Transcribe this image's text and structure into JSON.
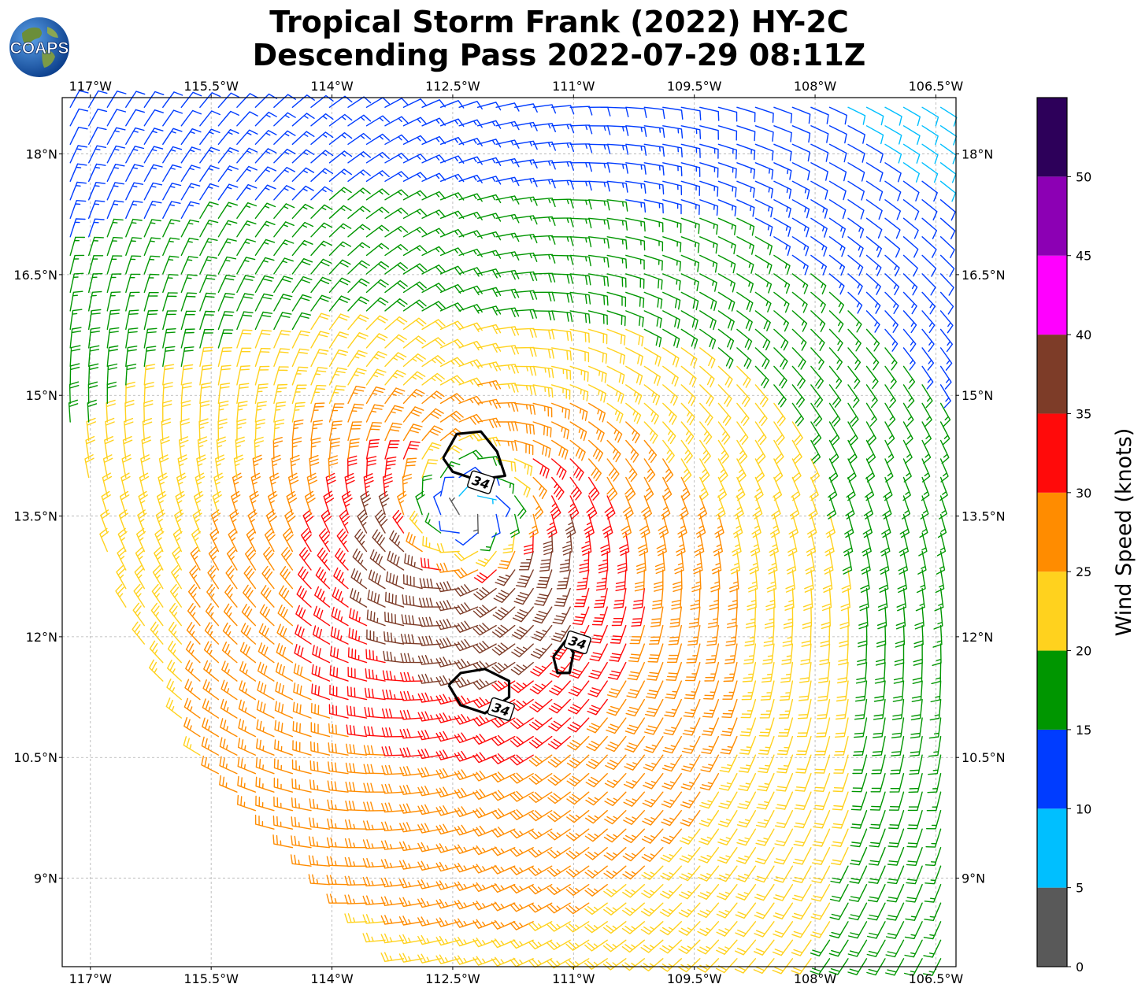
{
  "title_line1": "Tropical Storm Frank (2022) HY-2C",
  "title_line2": "Descending Pass 2022-07-29 08:11Z",
  "logo_text": "COAPS",
  "chart_data": {
    "type": "wind_barb",
    "title": "Tropical Storm Frank (2022) HY-2C Descending Pass 2022-07-29 08:11Z",
    "xlim": [
      -117.35,
      -106.25
    ],
    "ylim": [
      7.9,
      18.7
    ],
    "x_ticks": [
      -117,
      -115.5,
      -114,
      -112.5,
      -111,
      -109.5,
      -108,
      -106.5
    ],
    "x_tick_labels": [
      "117°W",
      "115.5°W",
      "114°W",
      "112.5°W",
      "111°W",
      "109.5°W",
      "108°W",
      "106.5°W"
    ],
    "y_ticks": [
      9,
      10.5,
      12,
      13.5,
      15,
      16.5,
      18
    ],
    "y_tick_labels": [
      "9°N",
      "10.5°N",
      "12°N",
      "13.5°N",
      "15°N",
      "16.5°N",
      "18°N"
    ],
    "grid": true,
    "storm_center": {
      "lon": -112.3,
      "lat": 13.55
    },
    "swath_edge": [
      [
        -117.35,
        18.7
      ],
      [
        -117.35,
        14.7
      ],
      [
        -116.9,
        13.2
      ],
      [
        -116.7,
        12.4
      ],
      [
        -115.8,
        10.6
      ],
      [
        -115.1,
        9.9
      ],
      [
        -113.2,
        7.9
      ]
    ],
    "colorbar": {
      "label": "Wind Speed (knots)",
      "bounds": [
        0,
        5,
        10,
        15,
        20,
        25,
        30,
        35,
        40,
        45,
        50,
        55
      ],
      "tick_labels": [
        "0",
        "5",
        "10",
        "15",
        "20",
        "25",
        "30",
        "35",
        "40",
        "45",
        "50"
      ],
      "colors": [
        "#595959",
        "#00bfff",
        "#003cff",
        "#009600",
        "#ffd21e",
        "#ff8c00",
        "#ff0a0a",
        "#7d3c28",
        "#ff00ff",
        "#8c00b4",
        "#2d005a"
      ]
    },
    "contours": [
      {
        "level": 34,
        "label": "34",
        "points": [
          [
            -112.62,
            14.22
          ],
          [
            -112.45,
            14.52
          ],
          [
            -112.15,
            14.55
          ],
          [
            -111.95,
            14.3
          ],
          [
            -111.85,
            14.0
          ],
          [
            -112.2,
            13.95
          ],
          [
            -112.5,
            14.05
          ],
          [
            -112.62,
            14.22
          ]
        ]
      },
      {
        "level": 34,
        "label": "34",
        "points": [
          [
            -112.55,
            11.4
          ],
          [
            -112.4,
            11.55
          ],
          [
            -112.1,
            11.6
          ],
          [
            -111.8,
            11.45
          ],
          [
            -111.8,
            11.25
          ],
          [
            -112.1,
            11.05
          ],
          [
            -112.4,
            11.15
          ],
          [
            -112.55,
            11.4
          ]
        ]
      },
      {
        "level": 34,
        "label": "34",
        "points": [
          [
            -111.25,
            11.75
          ],
          [
            -111.1,
            11.95
          ],
          [
            -111.0,
            11.8
          ],
          [
            -111.05,
            11.55
          ],
          [
            -111.2,
            11.55
          ],
          [
            -111.25,
            11.75
          ]
        ]
      }
    ],
    "contour_label_positions": [
      [
        -112.15,
        13.92
      ],
      [
        -111.9,
        11.1
      ],
      [
        -110.95,
        11.93
      ]
    ],
    "wind_model": {
      "description": "cyclonic circulation: calm eye, 34+ kt cores south and east of center, 15-20 kt outer band, weaker winds to the north-east",
      "max_wind_kt": 37,
      "radius_max_wind_deg": 1.1,
      "outer_wind_kt": 17,
      "grid_spacing_deg": 0.23
    }
  }
}
